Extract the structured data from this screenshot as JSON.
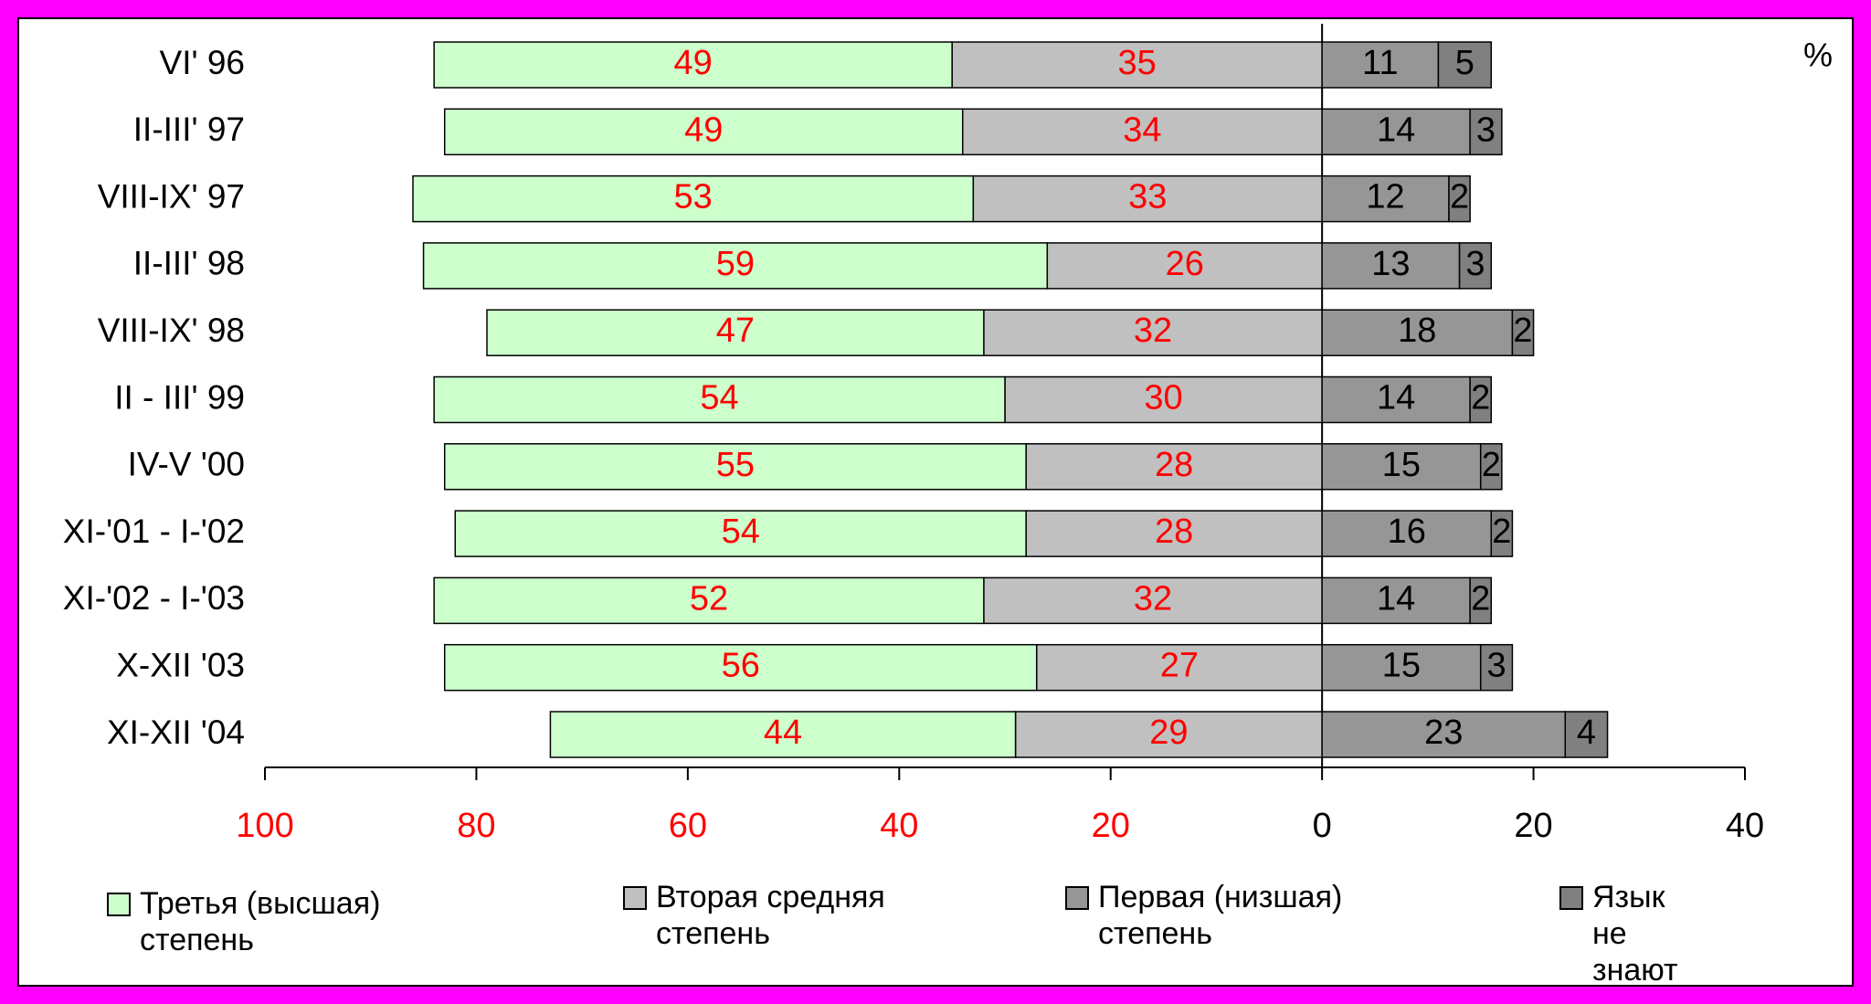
{
  "chart_data": {
    "type": "diverging-bar",
    "annotation": "%",
    "categories": [
      "VI' 96",
      "II-III' 97",
      "VIII-IX' 97",
      "II-III' 98",
      "VIII-IX' 98",
      "II - III' 99",
      "IV-V '00",
      "XI-'01 - I-'02",
      "XI-'02 - I-'03",
      "X-XII '03",
      "XI-XII '04"
    ],
    "series": [
      {
        "name": "Третья (высшая) степень",
        "color": "#ccffcc",
        "side": "left",
        "label_color": "#ff0000",
        "values": [
          49,
          49,
          53,
          59,
          47,
          54,
          55,
          54,
          52,
          56,
          44
        ]
      },
      {
        "name": "Вторая средняя степень",
        "color": "#c0c0c0",
        "side": "left",
        "label_color": "#ff0000",
        "values": [
          35,
          34,
          33,
          26,
          32,
          30,
          28,
          28,
          32,
          27,
          29
        ]
      },
      {
        "name": "Первая (низшая) степень",
        "color": "#969696",
        "side": "right",
        "label_color": "#000000",
        "values": [
          11,
          14,
          12,
          13,
          18,
          14,
          15,
          16,
          14,
          15,
          23
        ]
      },
      {
        "name": "Язык не знают",
        "color": "#808080",
        "side": "right",
        "label_color": "#000000",
        "values": [
          5,
          3,
          2,
          3,
          2,
          2,
          2,
          2,
          2,
          3,
          4
        ]
      }
    ],
    "xlim": [
      -100,
      40
    ],
    "xticks": [
      {
        "value": -100,
        "label": "100"
      },
      {
        "value": -80,
        "label": "80"
      },
      {
        "value": -60,
        "label": "60"
      },
      {
        "value": -40,
        "label": "40"
      },
      {
        "value": -20,
        "label": "20"
      },
      0,
      20,
      40
    ],
    "negative_tick_color": "#ff0000"
  }
}
